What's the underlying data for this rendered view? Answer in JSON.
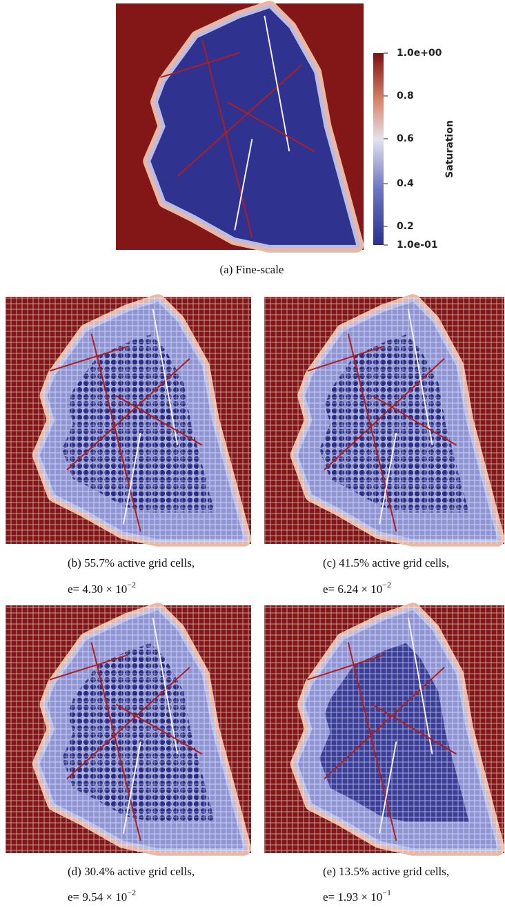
{
  "colorbar": {
    "title": "Saturation",
    "labels": [
      "1.0e+00",
      "0.8",
      "0.6",
      "0.4",
      "0.2",
      "1.0e-01"
    ]
  },
  "panels": [
    {
      "caption": "(a) Fine-scale"
    },
    {
      "caption": "(b) 55.7% active grid cells,",
      "error": "e= 4.30 × 10",
      "exponent": "−2"
    },
    {
      "caption": "(c) 41.5% active grid cells,",
      "error": "e= 6.24 × 10",
      "exponent": "−2"
    },
    {
      "caption": "(d) 30.4% active grid cells,",
      "error": "e= 9.54 × 10",
      "exponent": "−2"
    },
    {
      "caption": "(e) 13.5% active grid cells,",
      "error": "e= 1.93 × 10",
      "exponent": "−1"
    }
  ]
}
